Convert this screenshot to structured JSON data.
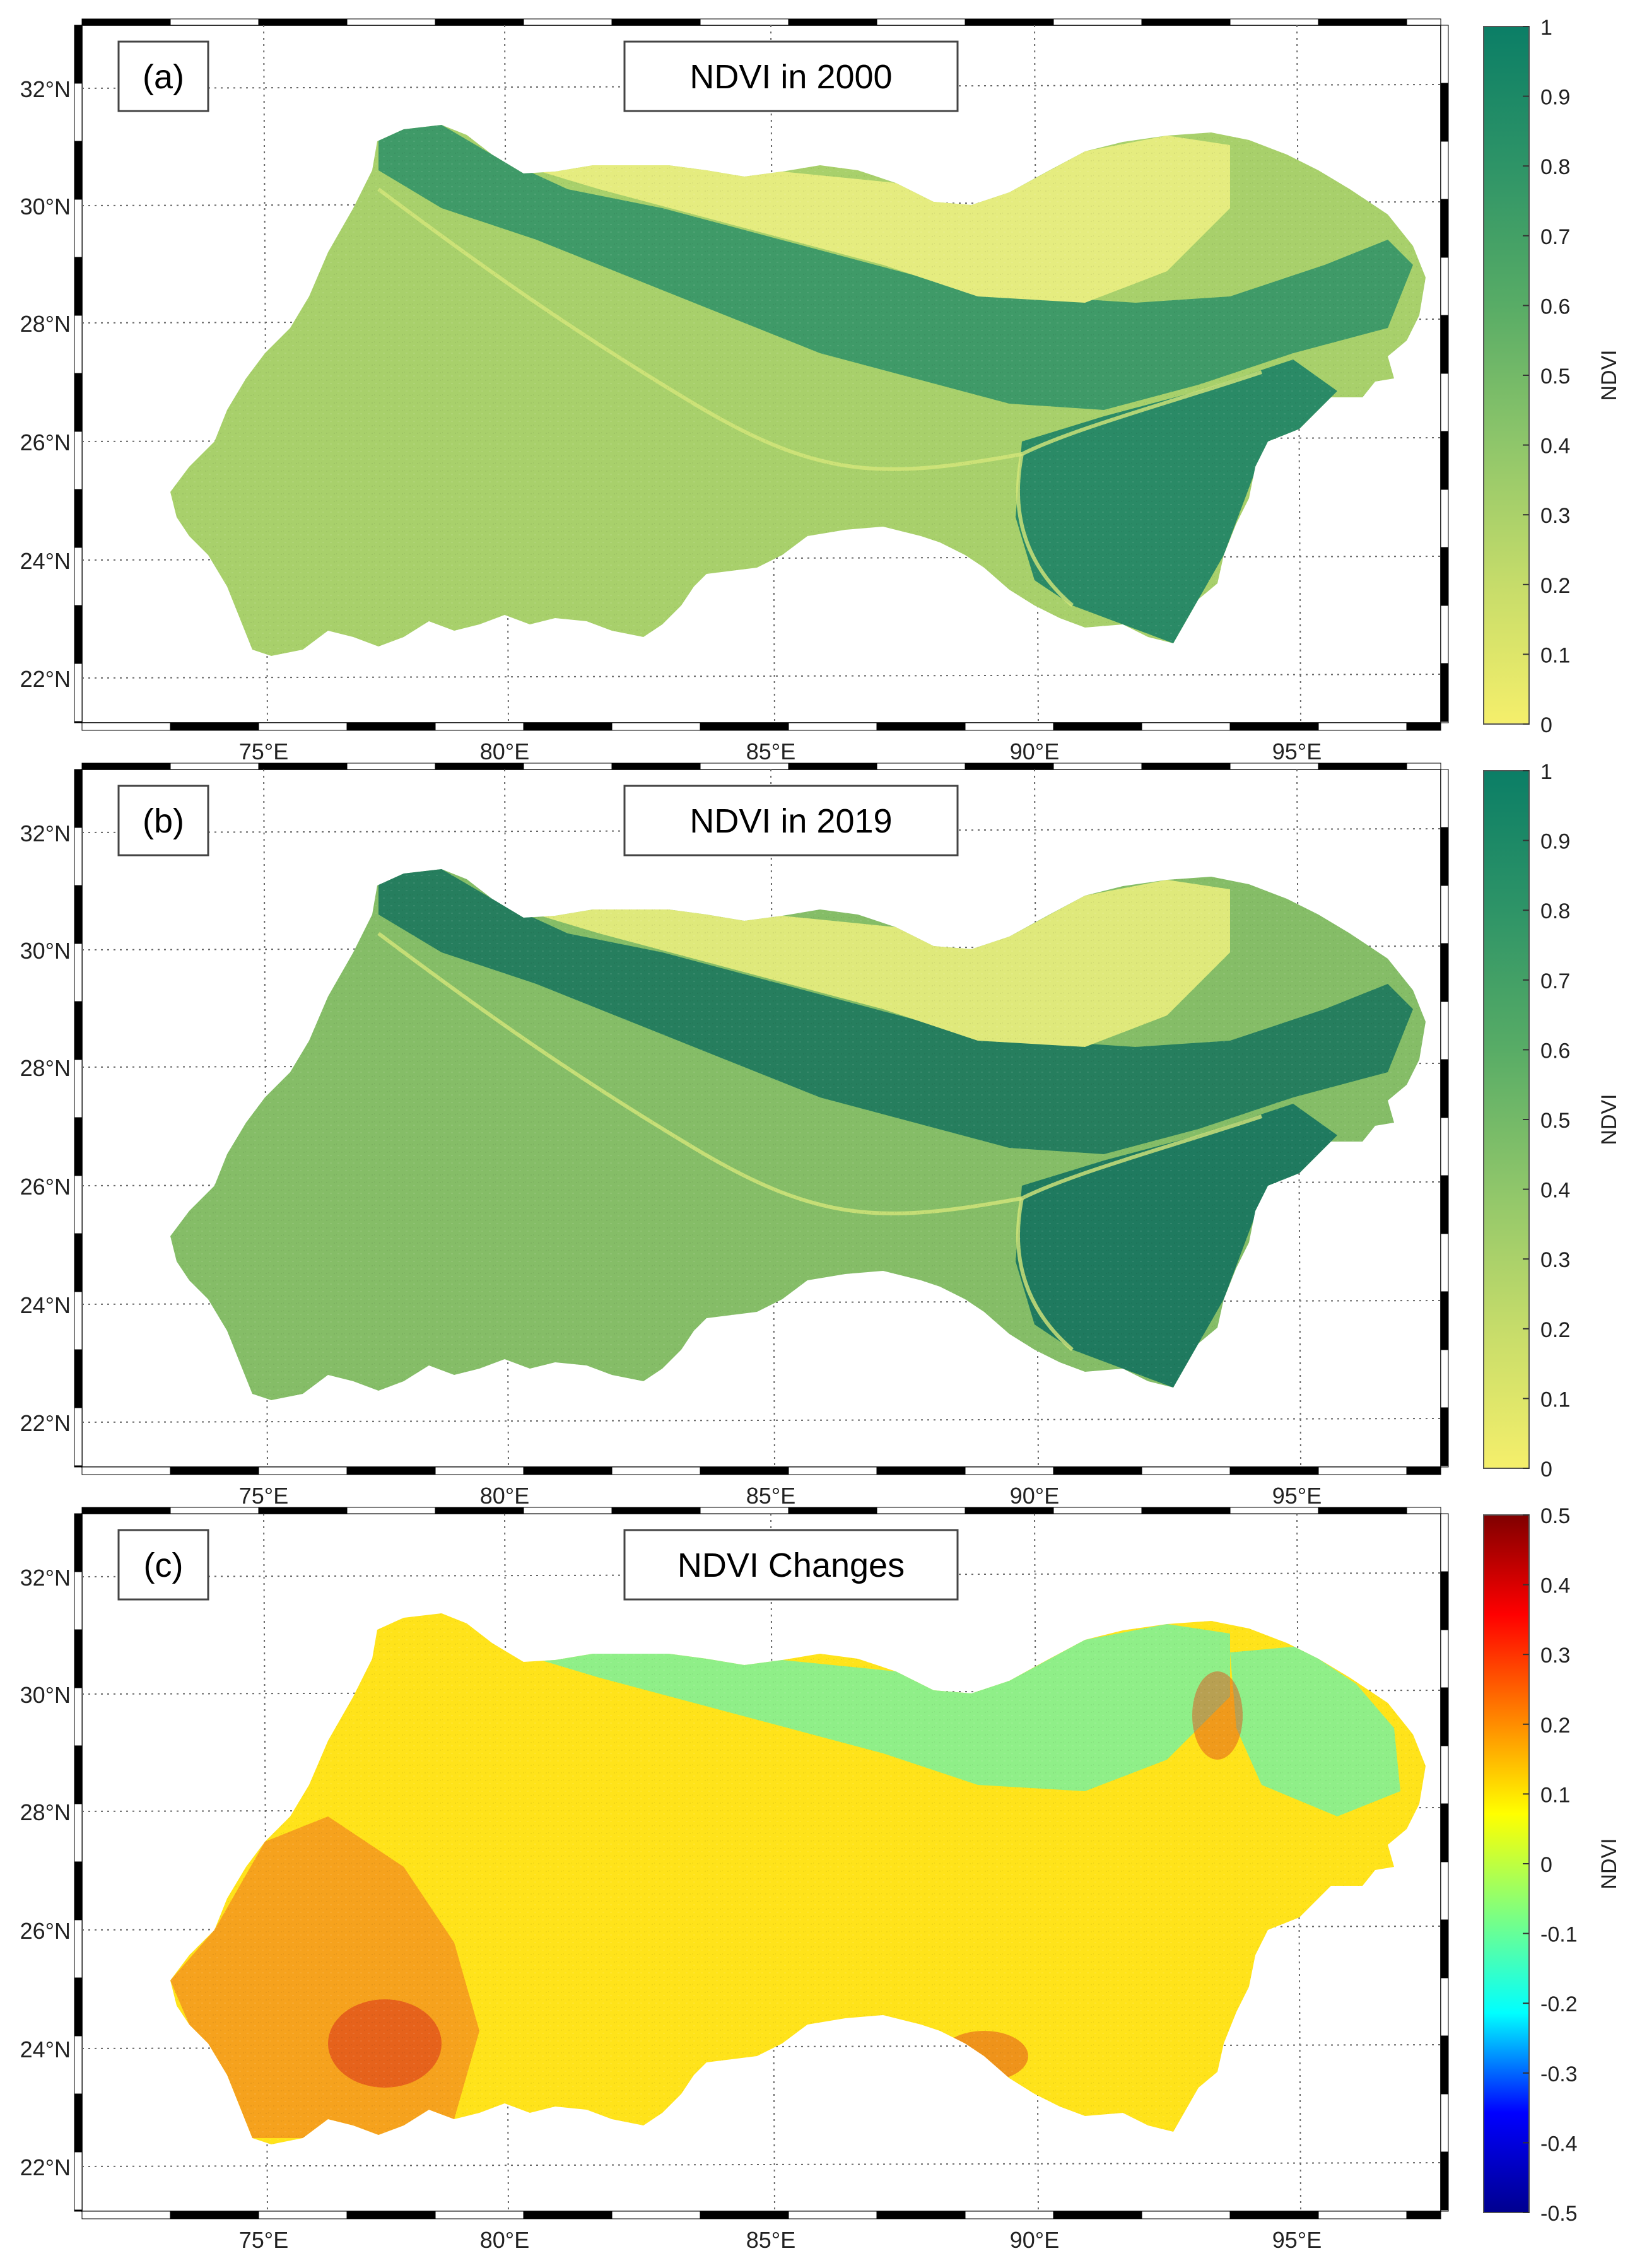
{
  "figure": {
    "panels": [
      {
        "id": "a",
        "label": "(a)",
        "title": "NDVI in 2000",
        "colorbar": {
          "label": "NDVI",
          "colormap": "yellow-green",
          "stops": [
            "#f5ef6b",
            "#c6dc6a",
            "#8fc66a",
            "#58ac66",
            "#2e9467",
            "#0b7e66"
          ],
          "ticks": [
            "0",
            "0.1",
            "0.2",
            "0.3",
            "0.4",
            "0.5",
            "0.6",
            "0.7",
            "0.8",
            "0.9",
            "1"
          ]
        }
      },
      {
        "id": "b",
        "label": "(b)",
        "title": "NDVI in 2019",
        "colorbar": {
          "label": "NDVI",
          "colormap": "yellow-green",
          "stops": [
            "#f5ef6b",
            "#c6dc6a",
            "#8fc66a",
            "#58ac66",
            "#2e9467",
            "#0b7e66"
          ],
          "ticks": [
            "0",
            "0.1",
            "0.2",
            "0.3",
            "0.4",
            "0.5",
            "0.6",
            "0.7",
            "0.8",
            "0.9",
            "1"
          ]
        }
      },
      {
        "id": "c",
        "label": "(c)",
        "title": "NDVI Changes",
        "colorbar": {
          "label": "NDVI",
          "colormap": "jet",
          "stops": [
            "#00008f",
            "#0000ff",
            "#00ffff",
            "#7fff7f",
            "#ffff00",
            "#ff8000",
            "#ff0000",
            "#800000"
          ],
          "ticks": [
            "-0.5",
            "-0.4",
            "-0.3",
            "-0.2",
            "-0.1",
            "0",
            "0.1",
            "0.2",
            "0.3",
            "0.4",
            "0.5"
          ]
        }
      }
    ],
    "lat_labels": [
      "22°N",
      "24°N",
      "26°N",
      "28°N",
      "30°N",
      "32°N"
    ],
    "lon_labels": [
      "75°E",
      "80°E",
      "85°E",
      "90°E",
      "95°E"
    ],
    "gridlines": "dotted",
    "frame_style": "black-white checkered",
    "region_colors": {
      "panel_a": {
        "lowland": "#a8d06b",
        "himalaya": "#3f9a68",
        "plateau": "#e5ec7f",
        "northeast": "#2a8a66"
      },
      "panel_b": {
        "lowland": "#85bd67",
        "himalaya": "#267e5e",
        "plateau": "#dfe97b",
        "northeast": "#1f7a5f"
      },
      "panel_c": {
        "plain": "#ffe31a",
        "west": "#f59a1e",
        "plateau": "#8fef88",
        "hotspot": "#e2521b"
      }
    }
  }
}
